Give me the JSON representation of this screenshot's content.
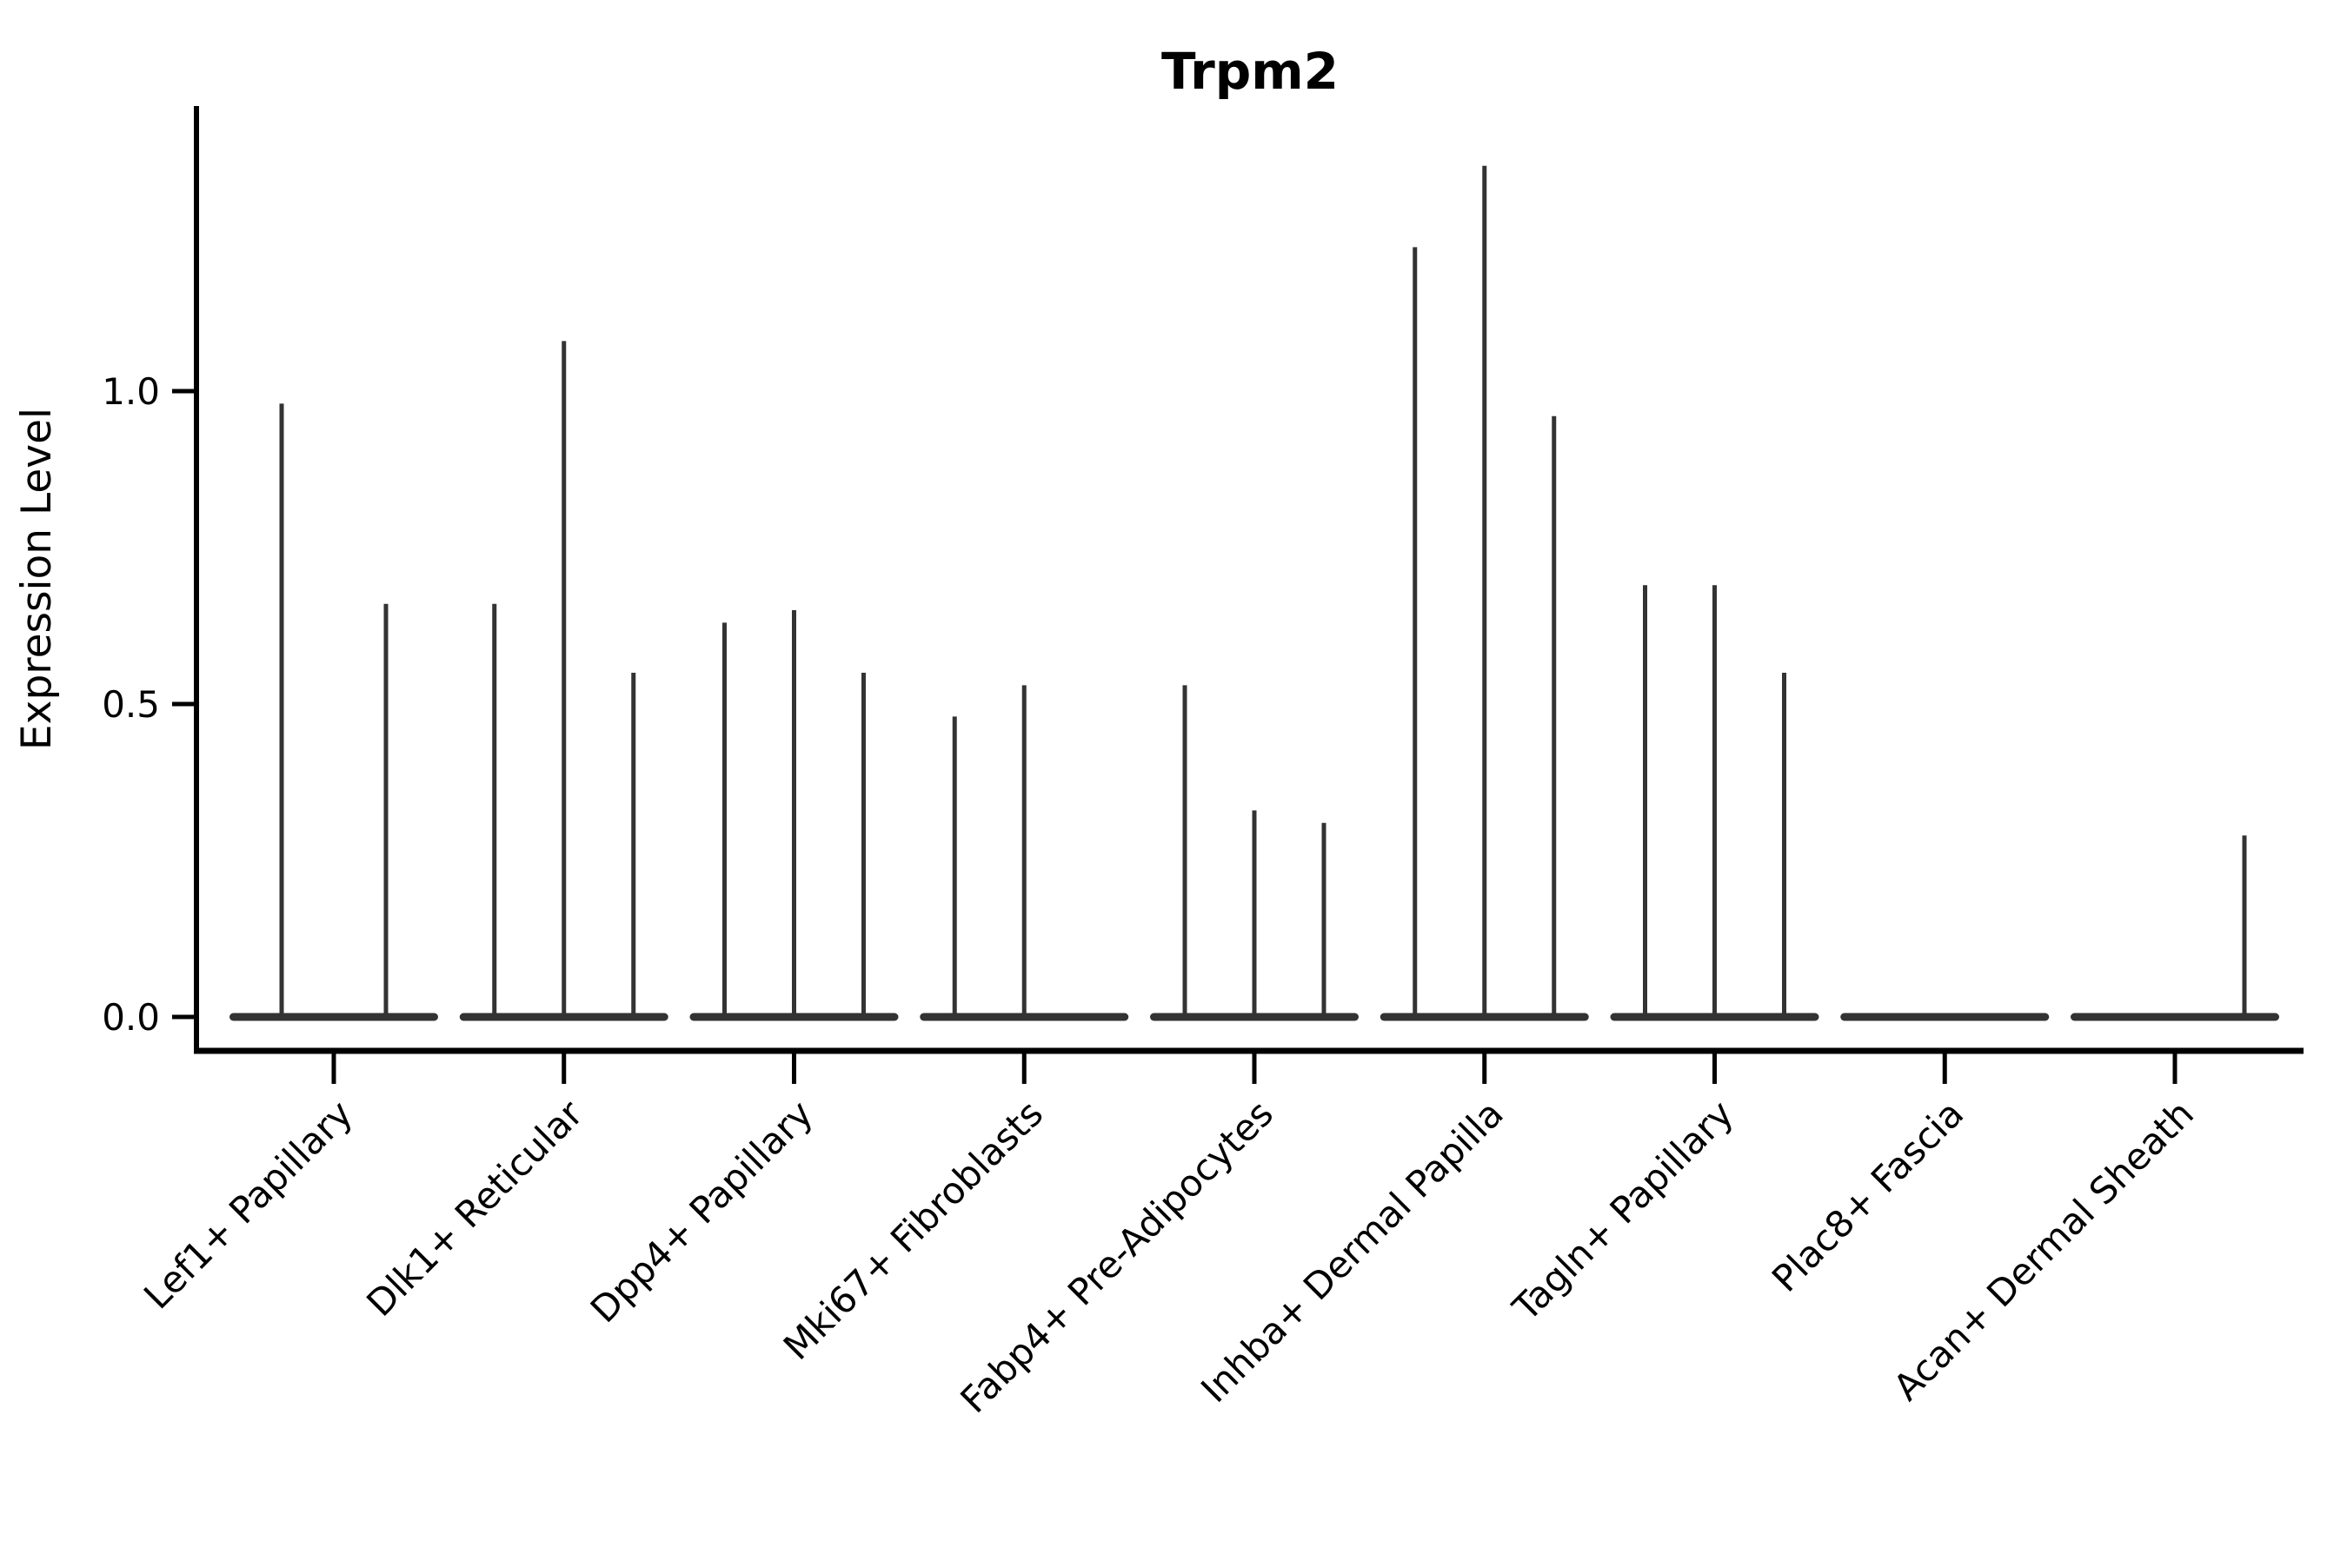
{
  "figure": {
    "title": "Trpm2",
    "background_color": "#ffffff"
  },
  "axes": {
    "ylabel": "Expression Level",
    "ytick_labels": [
      "0.0",
      "0.5",
      "1.0"
    ],
    "axis_color": "#000000",
    "violin_color": "#333333"
  },
  "chart_data": {
    "type": "violin",
    "title": "Trpm2",
    "xlabel": "",
    "ylabel": "Expression Level",
    "ylim": [
      -0.06,
      1.45
    ],
    "yticks": [
      0.0,
      0.5,
      1.0
    ],
    "grid": false,
    "legend_position": "none",
    "x_tick_rotation_deg": 45,
    "categories": [
      "Lef1+ Papillary",
      "Dlk1+ Reticular",
      "Dpp4+ Papillary",
      "Mki67+ Fibroblasts",
      "Fabp4+ Pre-Adipocytes",
      "Inhba+ Dermal Papilla",
      "Tagln+ Papillary",
      "Plac8+ Fascia",
      "Acan+ Dermal Sheath"
    ],
    "series": [
      {
        "category": "Lef1+ Papillary",
        "violin_max_values": [
          0.98,
          0.66
        ]
      },
      {
        "category": "Dlk1+ Reticular",
        "violin_max_values": [
          0.66,
          1.08,
          0.55
        ]
      },
      {
        "category": "Dpp4+ Papillary",
        "violin_max_values": [
          0.63,
          0.65,
          0.55
        ]
      },
      {
        "category": "Mki67+ Fibroblasts",
        "violin_max_values": [
          0.48,
          0.53,
          0.0
        ]
      },
      {
        "category": "Fabp4+ Pre-Adipocytes",
        "violin_max_values": [
          0.53,
          0.33,
          0.31
        ]
      },
      {
        "category": "Inhba+ Dermal Papilla",
        "violin_max_values": [
          1.23,
          1.36,
          0.96
        ]
      },
      {
        "category": "Tagln+ Papillary",
        "violin_max_values": [
          0.69,
          0.69,
          0.55
        ]
      },
      {
        "category": "Plac8+ Fascia",
        "violin_max_values": [
          0.0,
          0.0,
          0.0
        ]
      },
      {
        "category": "Acan+ Dermal Sheath",
        "violin_max_values": [
          0.0,
          0.0,
          0.29
        ]
      }
    ],
    "description": "Each category shows thin violins: a flat baseline at expression 0 with a narrow spike up to the max expression value."
  }
}
